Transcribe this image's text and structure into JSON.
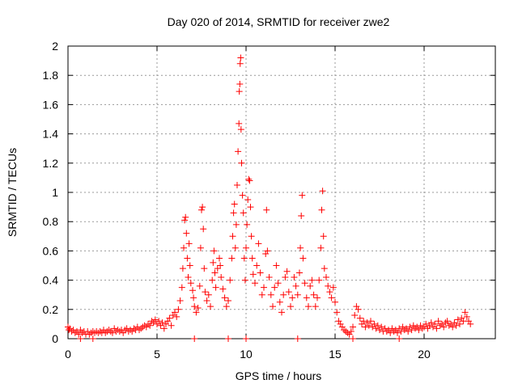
{
  "chart_data": {
    "type": "scatter",
    "title": "Day 020 of 2014, SRMTID for receiver zwe2",
    "xlabel": "GPS time / hours",
    "ylabel": "SRMTID / TECUs",
    "xlim": [
      0,
      24
    ],
    "ylim": [
      0,
      2
    ],
    "grid": true,
    "marker": "+",
    "series_color": "#ff0000",
    "x_ticks": [
      0,
      5,
      10,
      15,
      20
    ],
    "x_tick_labels": [
      "0",
      "5",
      "10",
      "15",
      "20"
    ],
    "y_ticks": [
      0,
      0.2,
      0.4,
      0.6,
      0.8,
      1,
      1.2,
      1.4,
      1.6,
      1.8,
      2
    ],
    "y_tick_labels": [
      "0",
      "0.2",
      "0.4",
      "0.6",
      "0.8",
      "1",
      "1.2",
      "1.4",
      "1.6",
      "1.8",
      "2"
    ],
    "series": [
      {
        "name": "SRMTID",
        "points": [
          [
            0.0,
            0.08
          ],
          [
            0.05,
            0.06
          ],
          [
            0.1,
            0.07
          ],
          [
            0.2,
            0.05
          ],
          [
            0.3,
            0.06
          ],
          [
            0.4,
            0.04
          ],
          [
            0.5,
            0.05
          ],
          [
            0.6,
            0.03
          ],
          [
            0.7,
            0.06
          ],
          [
            0.8,
            0.04
          ],
          [
            0.9,
            0.05
          ],
          [
            1.0,
            0.03
          ],
          [
            1.1,
            0.05
          ],
          [
            1.2,
            0.03
          ],
          [
            1.3,
            0.04
          ],
          [
            1.4,
            0.05
          ],
          [
            1.5,
            0.04
          ],
          [
            1.6,
            0.05
          ],
          [
            1.7,
            0.04
          ],
          [
            1.8,
            0.05
          ],
          [
            1.9,
            0.04
          ],
          [
            2.0,
            0.06
          ],
          [
            2.1,
            0.04
          ],
          [
            2.2,
            0.05
          ],
          [
            2.3,
            0.06
          ],
          [
            2.4,
            0.05
          ],
          [
            2.5,
            0.04
          ],
          [
            2.6,
            0.07
          ],
          [
            2.7,
            0.05
          ],
          [
            2.8,
            0.06
          ],
          [
            2.9,
            0.05
          ],
          [
            3.0,
            0.06
          ],
          [
            3.1,
            0.04
          ],
          [
            3.2,
            0.06
          ],
          [
            3.3,
            0.07
          ],
          [
            3.4,
            0.05
          ],
          [
            3.5,
            0.06
          ],
          [
            3.6,
            0.05
          ],
          [
            3.7,
            0.07
          ],
          [
            3.8,
            0.06
          ],
          [
            3.9,
            0.08
          ],
          [
            4.0,
            0.06
          ],
          [
            4.1,
            0.07
          ],
          [
            4.2,
            0.08
          ],
          [
            4.3,
            0.09
          ],
          [
            4.4,
            0.08
          ],
          [
            4.5,
            0.1
          ],
          [
            4.6,
            0.09
          ],
          [
            4.7,
            0.12
          ],
          [
            4.8,
            0.11
          ],
          [
            4.9,
            0.13
          ],
          [
            5.0,
            0.1
          ],
          [
            5.1,
            0.12
          ],
          [
            5.2,
            0.09
          ],
          [
            5.3,
            0.11
          ],
          [
            5.4,
            0.07
          ],
          [
            5.5,
            0.1
          ],
          [
            5.6,
            0.12
          ],
          [
            5.7,
            0.14
          ],
          [
            5.8,
            0.09
          ],
          [
            5.9,
            0.16
          ],
          [
            6.0,
            0.18
          ],
          [
            6.1,
            0.15
          ],
          [
            6.2,
            0.2
          ],
          [
            6.3,
            0.26
          ],
          [
            6.4,
            0.35
          ],
          [
            6.45,
            0.48
          ],
          [
            6.5,
            0.62
          ],
          [
            6.55,
            0.81
          ],
          [
            6.6,
            0.83
          ],
          [
            6.65,
            0.72
          ],
          [
            6.7,
            0.55
          ],
          [
            6.75,
            0.42
          ],
          [
            6.8,
            0.65
          ],
          [
            6.85,
            0.5
          ],
          [
            6.9,
            0.38
          ],
          [
            7.0,
            0.33
          ],
          [
            7.05,
            0.28
          ],
          [
            7.1,
            0.22
          ],
          [
            7.2,
            0.18
          ],
          [
            7.3,
            0.21
          ],
          [
            7.4,
            0.36
          ],
          [
            7.45,
            0.62
          ],
          [
            7.5,
            0.88
          ],
          [
            7.55,
            0.9
          ],
          [
            7.6,
            0.75
          ],
          [
            7.65,
            0.48
          ],
          [
            7.7,
            0.32
          ],
          [
            7.8,
            0.26
          ],
          [
            7.9,
            0.3
          ],
          [
            8.0,
            0.22
          ],
          [
            8.1,
            0.4
          ],
          [
            8.15,
            0.52
          ],
          [
            8.2,
            0.6
          ],
          [
            8.25,
            0.45
          ],
          [
            8.3,
            0.35
          ],
          [
            8.4,
            0.48
          ],
          [
            8.5,
            0.55
          ],
          [
            8.55,
            0.5
          ],
          [
            8.6,
            0.42
          ],
          [
            8.7,
            0.34
          ],
          [
            8.8,
            0.28
          ],
          [
            8.9,
            0.22
          ],
          [
            9.0,
            0.26
          ],
          [
            9.1,
            0.4
          ],
          [
            9.2,
            0.55
          ],
          [
            9.25,
            0.7
          ],
          [
            9.3,
            0.86
          ],
          [
            9.35,
            0.92
          ],
          [
            9.4,
            0.62
          ],
          [
            9.45,
            0.78
          ],
          [
            9.5,
            1.05
          ],
          [
            9.55,
            1.28
          ],
          [
            9.6,
            1.47
          ],
          [
            9.62,
            1.69
          ],
          [
            9.65,
            1.74
          ],
          [
            9.67,
            1.88
          ],
          [
            9.7,
            1.92
          ],
          [
            9.72,
            1.43
          ],
          [
            9.75,
            1.2
          ],
          [
            9.8,
            0.98
          ],
          [
            9.85,
            0.86
          ],
          [
            9.9,
            0.55
          ],
          [
            9.95,
            0.4
          ],
          [
            10.0,
            0.62
          ],
          [
            10.05,
            0.78
          ],
          [
            10.1,
            0.95
          ],
          [
            10.15,
            1.09
          ],
          [
            10.2,
            1.08
          ],
          [
            10.25,
            0.9
          ],
          [
            10.3,
            0.7
          ],
          [
            10.35,
            0.55
          ],
          [
            10.4,
            0.44
          ],
          [
            10.5,
            0.38
          ],
          [
            10.6,
            0.5
          ],
          [
            10.7,
            0.65
          ],
          [
            10.8,
            0.45
          ],
          [
            10.9,
            0.3
          ],
          [
            11.0,
            0.35
          ],
          [
            11.1,
            0.58
          ],
          [
            11.15,
            0.88
          ],
          [
            11.2,
            0.6
          ],
          [
            11.3,
            0.42
          ],
          [
            11.4,
            0.3
          ],
          [
            11.5,
            0.22
          ],
          [
            11.6,
            0.35
          ],
          [
            11.7,
            0.5
          ],
          [
            11.8,
            0.38
          ],
          [
            11.9,
            0.25
          ],
          [
            12.0,
            0.18
          ],
          [
            12.1,
            0.3
          ],
          [
            12.2,
            0.42
          ],
          [
            12.3,
            0.46
          ],
          [
            12.4,
            0.32
          ],
          [
            12.5,
            0.22
          ],
          [
            12.6,
            0.28
          ],
          [
            12.7,
            0.42
          ],
          [
            12.8,
            0.36
          ],
          [
            12.9,
            0.3
          ],
          [
            13.0,
            0.45
          ],
          [
            13.05,
            0.62
          ],
          [
            13.1,
            0.84
          ],
          [
            13.15,
            0.98
          ],
          [
            13.2,
            0.55
          ],
          [
            13.3,
            0.38
          ],
          [
            13.4,
            0.28
          ],
          [
            13.5,
            0.22
          ],
          [
            13.6,
            0.36
          ],
          [
            13.7,
            0.4
          ],
          [
            13.8,
            0.3
          ],
          [
            13.9,
            0.22
          ],
          [
            14.0,
            0.28
          ],
          [
            14.1,
            0.4
          ],
          [
            14.2,
            0.62
          ],
          [
            14.25,
            0.88
          ],
          [
            14.3,
            1.01
          ],
          [
            14.35,
            0.7
          ],
          [
            14.4,
            0.48
          ],
          [
            14.5,
            0.42
          ],
          [
            14.6,
            0.36
          ],
          [
            14.7,
            0.32
          ],
          [
            14.8,
            0.28
          ],
          [
            14.9,
            0.35
          ],
          [
            15.0,
            0.25
          ],
          [
            15.1,
            0.18
          ],
          [
            15.2,
            0.12
          ],
          [
            15.3,
            0.1
          ],
          [
            15.4,
            0.08
          ],
          [
            15.5,
            0.06
          ],
          [
            15.6,
            0.05
          ],
          [
            15.7,
            0.04
          ],
          [
            15.8,
            0.03
          ],
          [
            15.9,
            0.05
          ],
          [
            16.0,
            0.08
          ],
          [
            16.1,
            0.16
          ],
          [
            16.2,
            0.22
          ],
          [
            16.3,
            0.2
          ],
          [
            16.4,
            0.14
          ],
          [
            16.5,
            0.1
          ],
          [
            16.6,
            0.12
          ],
          [
            16.7,
            0.08
          ],
          [
            16.8,
            0.11
          ],
          [
            16.9,
            0.09
          ],
          [
            17.0,
            0.12
          ],
          [
            17.1,
            0.08
          ],
          [
            17.2,
            0.1
          ],
          [
            17.3,
            0.07
          ],
          [
            17.4,
            0.09
          ],
          [
            17.5,
            0.06
          ],
          [
            17.6,
            0.08
          ],
          [
            17.7,
            0.05
          ],
          [
            17.8,
            0.07
          ],
          [
            17.9,
            0.05
          ],
          [
            18.0,
            0.06
          ],
          [
            18.1,
            0.04
          ],
          [
            18.2,
            0.07
          ],
          [
            18.3,
            0.05
          ],
          [
            18.4,
            0.06
          ],
          [
            18.5,
            0.04
          ],
          [
            18.6,
            0.07
          ],
          [
            18.7,
            0.05
          ],
          [
            18.8,
            0.08
          ],
          [
            18.9,
            0.06
          ],
          [
            19.0,
            0.07
          ],
          [
            19.1,
            0.05
          ],
          [
            19.2,
            0.08
          ],
          [
            19.3,
            0.06
          ],
          [
            19.4,
            0.09
          ],
          [
            19.5,
            0.07
          ],
          [
            19.6,
            0.08
          ],
          [
            19.7,
            0.06
          ],
          [
            19.8,
            0.09
          ],
          [
            19.9,
            0.07
          ],
          [
            20.0,
            0.08
          ],
          [
            20.1,
            0.1
          ],
          [
            20.2,
            0.07
          ],
          [
            20.3,
            0.09
          ],
          [
            20.4,
            0.11
          ],
          [
            20.5,
            0.08
          ],
          [
            20.6,
            0.1
          ],
          [
            20.7,
            0.07
          ],
          [
            20.8,
            0.12
          ],
          [
            20.9,
            0.09
          ],
          [
            21.0,
            0.1
          ],
          [
            21.1,
            0.08
          ],
          [
            21.2,
            0.11
          ],
          [
            21.3,
            0.12
          ],
          [
            21.4,
            0.09
          ],
          [
            21.5,
            0.1
          ],
          [
            21.6,
            0.08
          ],
          [
            21.7,
            0.11
          ],
          [
            21.8,
            0.09
          ],
          [
            21.9,
            0.13
          ],
          [
            22.0,
            0.1
          ],
          [
            22.1,
            0.14
          ],
          [
            22.2,
            0.12
          ],
          [
            22.3,
            0.18
          ],
          [
            22.4,
            0.15
          ],
          [
            22.5,
            0.12
          ],
          [
            22.6,
            0.1
          ],
          [
            0.7,
            0.0
          ],
          [
            1.4,
            0.0
          ],
          [
            7.1,
            0.0
          ],
          [
            9.0,
            0.0
          ],
          [
            10.0,
            0.0
          ],
          [
            12.9,
            0.0
          ],
          [
            16.0,
            0.0
          ],
          [
            18.6,
            0.0
          ]
        ]
      }
    ]
  }
}
